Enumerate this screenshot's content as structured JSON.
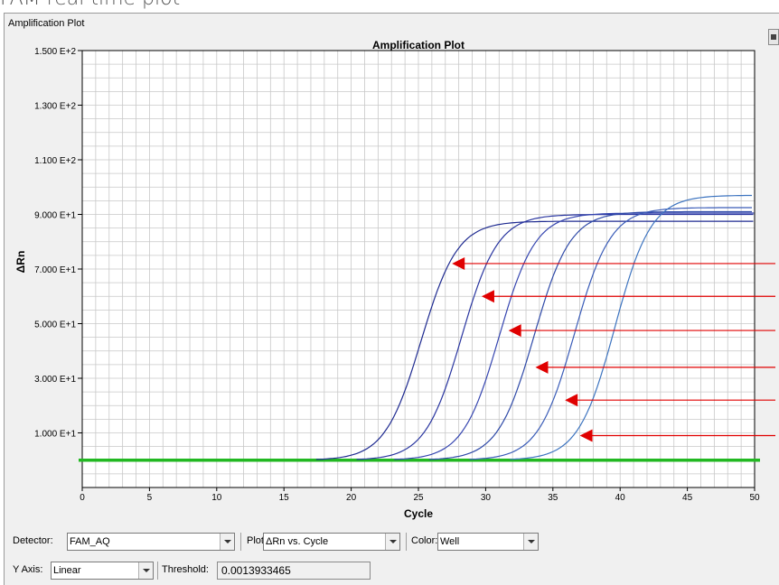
{
  "caption": "FAM real time plot",
  "panel": {
    "title": "Amplification Plot"
  },
  "chart_data": {
    "type": "line",
    "title": "Amplification Plot",
    "xlabel": "Cycle",
    "ylabel": "ΔRn",
    "xlim": [
      0,
      50
    ],
    "ylim": [
      -10,
      150
    ],
    "grid": true,
    "x_ticks": [
      0,
      5,
      10,
      15,
      20,
      25,
      30,
      35,
      40,
      45,
      50
    ],
    "y_ticks": [
      10,
      30,
      50,
      70,
      90,
      110,
      130,
      150
    ],
    "y_tick_labels": [
      "1.000 E+1",
      "3.000 E+1",
      "5.000 E+1",
      "7.000 E+1",
      "9.000 E+1",
      "1.100 E+2",
      "1.300 E+2",
      "1.500 E+2"
    ],
    "threshold": 0.0013933465,
    "series": [
      {
        "midpoint": 25.2,
        "plateau": 87.5,
        "color": "#1e2a90"
      },
      {
        "midpoint": 28.2,
        "plateau": 90.0,
        "color": "#2a36a0"
      },
      {
        "midpoint": 31.0,
        "plateau": 90.5,
        "color": "#3646b0"
      },
      {
        "midpoint": 33.6,
        "plateau": 91.0,
        "color": "#2f4aa8"
      },
      {
        "midpoint": 36.6,
        "plateau": 92.5,
        "color": "#3a5cb8"
      },
      {
        "midpoint": 39.6,
        "plateau": 97.0,
        "color": "#3d74c0"
      }
    ],
    "annotations": [
      {
        "x": 27.5,
        "y": 72
      },
      {
        "x": 29.7,
        "y": 60
      },
      {
        "x": 31.7,
        "y": 47.5
      },
      {
        "x": 33.7,
        "y": 34
      },
      {
        "x": 35.9,
        "y": 22
      },
      {
        "x": 37.0,
        "y": 9
      }
    ]
  },
  "toolbar": {
    "detector_label": "Detector:",
    "detector_value": "FAM_AQ",
    "plot_label": "Plot:",
    "plot_value": "ΔRn vs. Cycle",
    "color_label": "Color:",
    "color_value": "Well",
    "yaxis_label": "Y Axis:",
    "yaxis_value": "Linear",
    "threshold_label": "Threshold:",
    "threshold_value": "0.0013933465"
  },
  "colors": {
    "threshold_line": "#22b822",
    "arrow": "#e00000",
    "grid": "#c8c8c8"
  }
}
